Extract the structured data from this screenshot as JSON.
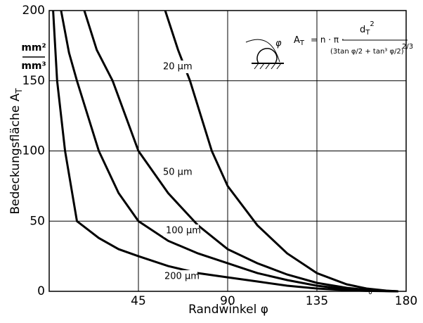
{
  "chart_data": {
    "type": "line",
    "x_label": "Randwinkel φ",
    "y_label": "Bedeckungsfläche A",
    "y_label_sub": "T",
    "y_unit_num": "mm²",
    "y_unit_den": "mm³",
    "degree_mark": "°",
    "formula": {
      "lhs": "A",
      "lhs_sub": "T",
      "op": "= n · π ·",
      "numerator": "d",
      "numerator_sub": "T",
      "numerator_sup": "2",
      "denominator": "(3tan φ/2 + tan³ φ/2)",
      "exponent": "2/3"
    },
    "sketch_label": "φ",
    "xlim": [
      0,
      180
    ],
    "xticks": [
      45,
      90,
      135,
      180
    ],
    "ylim": [
      0,
      200
    ],
    "yticks": [
      0,
      50,
      100,
      150,
      200
    ],
    "grid": true,
    "color": "#000000",
    "series": [
      {
        "name": "20 µm",
        "x": [
          58.5,
          65,
          71,
          82,
          90,
          105,
          120,
          135,
          150,
          160,
          170,
          176
        ],
        "values": [
          200,
          172,
          150,
          100,
          75,
          47,
          27,
          13,
          5,
          2,
          0.5,
          0
        ]
      },
      {
        "name": "50 µm",
        "x": [
          17.7,
          24,
          32,
          45,
          60,
          75,
          90,
          105,
          120,
          135,
          150,
          160,
          170,
          176
        ],
        "values": [
          200,
          172,
          150,
          100,
          70,
          47,
          30,
          20,
          12,
          6,
          2.5,
          1,
          0.3,
          0
        ]
      },
      {
        "name": "100 µm",
        "x": [
          6,
          10,
          14,
          25,
          35,
          45,
          60,
          75,
          90,
          105,
          120,
          135,
          150,
          160,
          170,
          176
        ],
        "values": [
          200,
          170,
          150,
          100,
          70,
          50,
          36,
          27,
          20,
          13,
          8,
          4,
          1.5,
          0.7,
          0.2,
          0
        ]
      },
      {
        "name": "200 µm",
        "x": [
          2,
          4,
          8,
          14,
          25,
          35,
          45,
          60,
          75,
          90,
          105,
          120,
          135,
          150,
          160,
          170,
          176
        ],
        "values": [
          200,
          150,
          100,
          50,
          38,
          30,
          25,
          18,
          13,
          10,
          7,
          4,
          2,
          0.8,
          0.3,
          0.1,
          0
        ]
      }
    ],
    "label_at": [
      82,
      25,
      25,
      25
    ]
  }
}
